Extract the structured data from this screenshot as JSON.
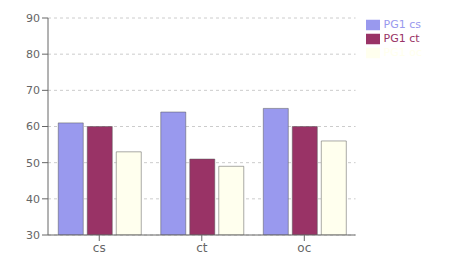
{
  "chart_data": {
    "type": "bar",
    "categories": [
      "cs",
      "ct",
      "oc"
    ],
    "series": [
      {
        "name": "PG1 cs",
        "color": "#9999EE",
        "values": [
          61,
          64,
          65
        ]
      },
      {
        "name": "PG1 ct",
        "color": "#993366",
        "values": [
          60,
          51,
          60
        ]
      },
      {
        "name": "PG1 oc",
        "color": "#FFFFEE",
        "values": [
          53,
          49,
          56
        ]
      }
    ],
    "ylim": [
      30,
      90
    ],
    "yticks": [
      30,
      40,
      50,
      60,
      70,
      80,
      90
    ],
    "grid": true,
    "legend": "upper right"
  }
}
